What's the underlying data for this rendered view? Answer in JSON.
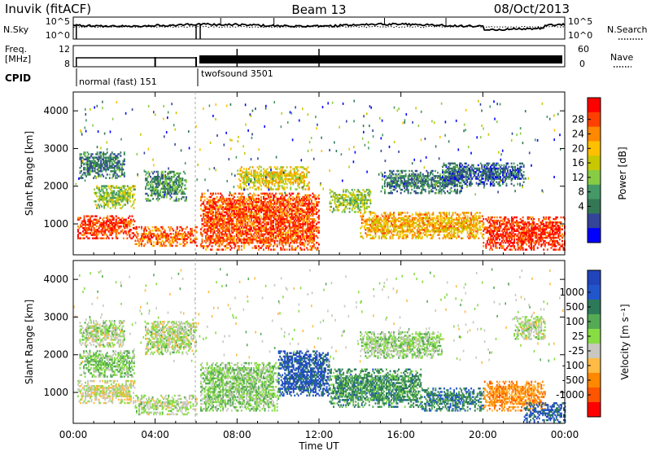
{
  "header": {
    "station": "Inuvik (fitACF)",
    "beam": "Beam 13",
    "date": "08/Oct/2013"
  },
  "noise_panel": {
    "left_label": "N.Sky",
    "right_label": "N.Search",
    "left_ticks": [
      "10^5",
      "10^0"
    ],
    "right_ticks": [
      "10^5",
      "10^0"
    ],
    "right_line_style": "dotted"
  },
  "freq_panel": {
    "left_label_lines": [
      "Freq.",
      "[MHz]"
    ],
    "right_label": "Nave",
    "left_ticks": [
      "12",
      "8"
    ],
    "right_ticks": [
      "60",
      "0"
    ],
    "right_line_style": "dotted"
  },
  "cpid": {
    "label": "CPID",
    "segments": [
      {
        "name": "normal (fast) 151",
        "start_hour": 0.0
      },
      {
        "name": "twofsound 3501",
        "start_hour": 6.0
      }
    ]
  },
  "power_colorbar": {
    "label": "Power [dB]",
    "ticks": [
      "28",
      "24",
      "20",
      "16",
      "12",
      "8",
      "4"
    ],
    "colors": [
      "#ff0000",
      "#ff4000",
      "#ff8800",
      "#ffc000",
      "#c8c800",
      "#88cc44",
      "#449966",
      "#337755",
      "#334499",
      "#0000ff"
    ]
  },
  "velocity_colorbar": {
    "label": "Velocity [m s⁻¹]",
    "ticks": [
      "1000",
      "500",
      "100",
      "25",
      "-25",
      "-100",
      "-500",
      "-1000"
    ],
    "colors": [
      "#2244bb",
      "#2255cc",
      "#2d7a5a",
      "#55aa55",
      "#88dd44",
      "#c8c8c0",
      "#ffbb44",
      "#ff8800",
      "#ff5500",
      "#ff0000"
    ]
  },
  "shared_x_axis": {
    "label": "Time UT",
    "tick_labels": [
      "00:00",
      "04:00",
      "08:00",
      "12:00",
      "16:00",
      "20:00",
      "00:00"
    ]
  },
  "chart_data": [
    {
      "type": "heatmap",
      "title": "",
      "xlabel": "Time UT",
      "ylabel": "Slant Range [km]",
      "x_range_hours": [
        0,
        24
      ],
      "ylim": [
        180,
        4500
      ],
      "y_ticks": [
        1000,
        2000,
        3000,
        4000
      ],
      "colorbar": "Power [dB]",
      "color_range": [
        0,
        30
      ],
      "regions": [
        {
          "t": [
            0.2,
            3.0
          ],
          "r": [
            600,
            1200
          ],
          "value": 26
        },
        {
          "t": [
            3.0,
            6.0
          ],
          "r": [
            400,
            900
          ],
          "value": 24
        },
        {
          "t": [
            1.0,
            3.0
          ],
          "r": [
            1400,
            2000
          ],
          "value": 14
        },
        {
          "t": [
            0.3,
            2.5
          ],
          "r": [
            2200,
            2900
          ],
          "value": 8
        },
        {
          "t": [
            3.5,
            5.5
          ],
          "r": [
            1600,
            2400
          ],
          "value": 10
        },
        {
          "t": [
            6.2,
            12.0
          ],
          "r": [
            300,
            1800
          ],
          "value": 25
        },
        {
          "t": [
            8.0,
            11.5
          ],
          "r": [
            1900,
            2500
          ],
          "value": 18
        },
        {
          "t": [
            12.5,
            14.5
          ],
          "r": [
            1300,
            1900
          ],
          "value": 14
        },
        {
          "t": [
            14.0,
            20.0
          ],
          "r": [
            600,
            1300
          ],
          "value": 20
        },
        {
          "t": [
            15.0,
            19.0
          ],
          "r": [
            1800,
            2400
          ],
          "value": 8
        },
        {
          "t": [
            20.0,
            24.0
          ],
          "r": [
            300,
            1200
          ],
          "value": 27
        },
        {
          "t": [
            18.0,
            22.0
          ],
          "r": [
            2000,
            2600
          ],
          "value": 6
        }
      ]
    },
    {
      "type": "heatmap",
      "title": "",
      "xlabel": "Time UT",
      "ylabel": "Slant Range [km]",
      "x_range_hours": [
        0,
        24
      ],
      "ylim": [
        180,
        4500
      ],
      "y_ticks": [
        1000,
        2000,
        3000,
        4000
      ],
      "colorbar": "Velocity [m s⁻¹]",
      "color_range": [
        -1000,
        1000
      ],
      "regions": [
        {
          "t": [
            0.2,
            3.0
          ],
          "r": [
            700,
            1300
          ],
          "value": -120
        },
        {
          "t": [
            0.3,
            3.0
          ],
          "r": [
            1400,
            2100
          ],
          "value": 150
        },
        {
          "t": [
            0.3,
            2.5
          ],
          "r": [
            2200,
            2900
          ],
          "value": 0
        },
        {
          "t": [
            3.5,
            6.0
          ],
          "r": [
            2000,
            2900
          ],
          "value": 0
        },
        {
          "t": [
            3.0,
            6.0
          ],
          "r": [
            400,
            900
          ],
          "value": 0
        },
        {
          "t": [
            6.2,
            10.0
          ],
          "r": [
            500,
            1800
          ],
          "value": 120
        },
        {
          "t": [
            10.0,
            12.5
          ],
          "r": [
            900,
            2100
          ],
          "value": 700
        },
        {
          "t": [
            12.5,
            17.0
          ],
          "r": [
            600,
            1600
          ],
          "value": 400
        },
        {
          "t": [
            14.0,
            18.0
          ],
          "r": [
            1900,
            2600
          ],
          "value": 60
        },
        {
          "t": [
            17.0,
            20.0
          ],
          "r": [
            500,
            1100
          ],
          "value": 500
        },
        {
          "t": [
            20.0,
            23.0
          ],
          "r": [
            500,
            1300
          ],
          "value": -450
        },
        {
          "t": [
            22.0,
            24.0
          ],
          "r": [
            200,
            700
          ],
          "value": 700
        },
        {
          "t": [
            21.5,
            23.0
          ],
          "r": [
            2400,
            3000
          ],
          "value": 0
        }
      ]
    }
  ]
}
